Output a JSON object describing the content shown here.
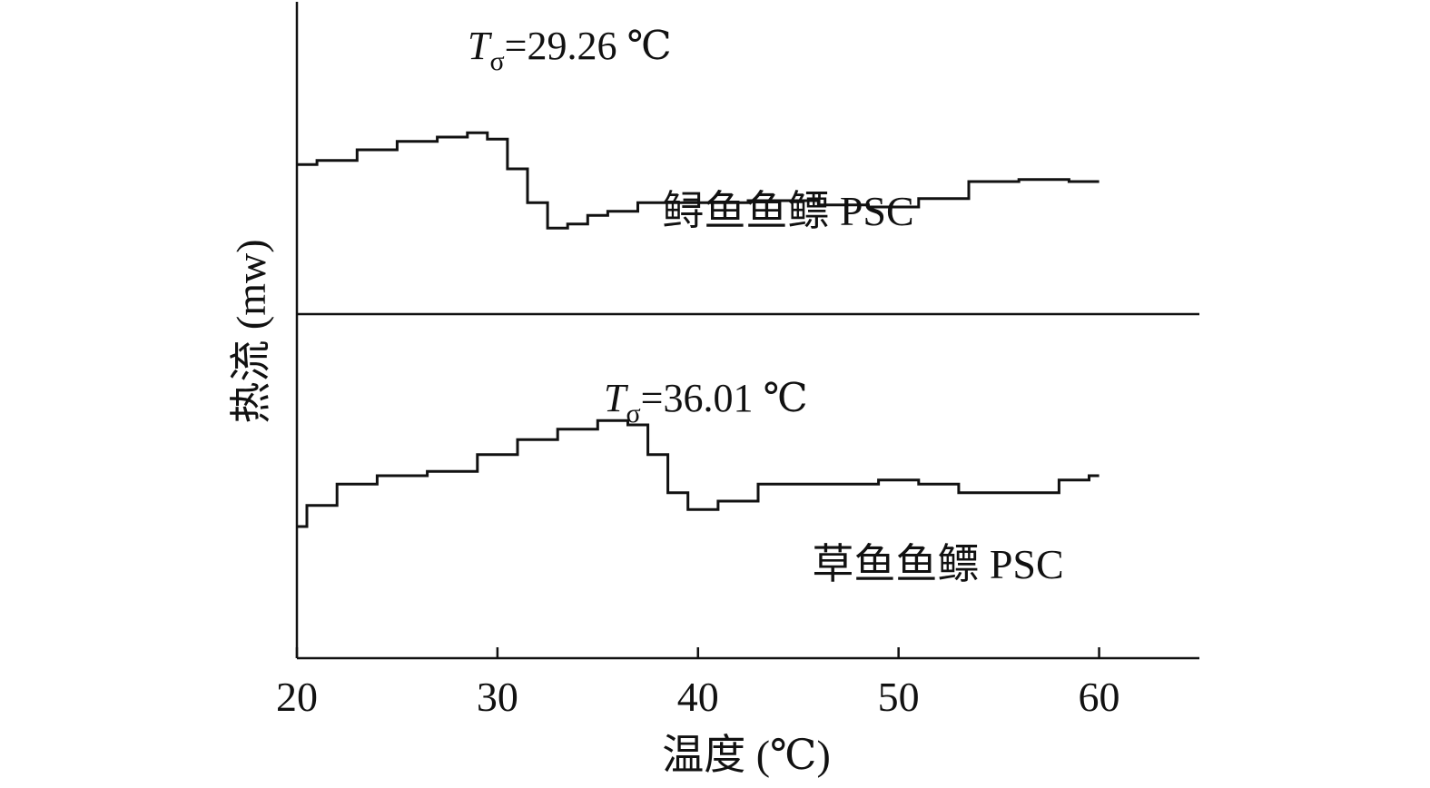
{
  "chart_data": {
    "type": "line",
    "title": "",
    "xlabel": "温度 (℃)",
    "ylabel": "热流 (mw)",
    "xlim": [
      20,
      65
    ],
    "xticks": [
      "20",
      "30",
      "40",
      "50",
      "60"
    ],
    "grid": false,
    "legend": "none",
    "panels": [
      {
        "name": "鲟鱼鱼鳔 PSC",
        "annotation": {
          "symbol": "T",
          "subscript": "σ",
          "value_text": "=29.26 ℃",
          "x": 29.26
        },
        "x": [
          20,
          22,
          24,
          26,
          28,
          29,
          30,
          31,
          32,
          33,
          34,
          35,
          36,
          38,
          40,
          45,
          47,
          50,
          52,
          55,
          57,
          60
        ],
        "y": [
          3.4,
          3.5,
          3.75,
          3.95,
          4.05,
          4.15,
          4.0,
          3.3,
          2.5,
          1.9,
          2.0,
          2.2,
          2.3,
          2.5,
          2.5,
          2.55,
          2.45,
          2.4,
          2.6,
          3.0,
          3.05,
          3.0
        ]
      },
      {
        "name": "草鱼鱼鳔 PSC",
        "annotation": {
          "symbol": "T",
          "subscript": "σ",
          "value_text": "=36.01 ℃",
          "x": 36.01
        },
        "x": [
          20,
          21,
          23,
          25,
          28,
          30,
          32,
          34,
          36,
          37,
          38,
          39,
          40,
          42,
          44,
          48,
          50,
          52,
          54,
          57,
          59,
          60
        ],
        "y": [
          3.0,
          3.5,
          4.0,
          4.2,
          4.3,
          4.7,
          5.05,
          5.3,
          5.5,
          5.4,
          4.7,
          3.8,
          3.4,
          3.6,
          4.0,
          4.0,
          4.1,
          4.0,
          3.8,
          3.8,
          4.1,
          4.2
        ]
      }
    ]
  }
}
